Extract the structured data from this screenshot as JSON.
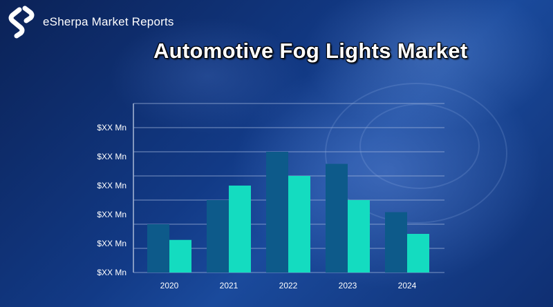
{
  "brand": {
    "name": "eSherpa Market Reports"
  },
  "chart_data": {
    "type": "bar",
    "title": "Automotive Fog Lights Market",
    "categories": [
      "2020",
      "2021",
      "2022",
      "2023",
      "2024"
    ],
    "y_tick_labels": [
      "$XX Mn",
      "$XX Mn",
      "$XX Mn",
      "$XX Mn",
      "$XX Mn",
      "$XX Mn"
    ],
    "ylim": [
      0,
      7
    ],
    "grid": true,
    "series": [
      {
        "values": [
          2,
          3,
          5,
          4.5,
          2.5
        ]
      },
      {
        "values": [
          1.35,
          3.6,
          4,
          3,
          1.6
        ]
      }
    ],
    "colors": [
      "#0d5a8a",
      "#14dcc0"
    ]
  }
}
